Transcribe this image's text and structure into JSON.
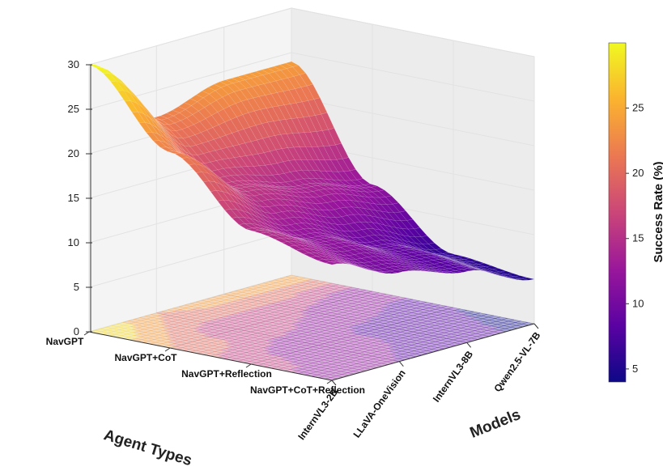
{
  "chart_data": {
    "type": "surface3d",
    "title": "",
    "xlabel": "Models",
    "ylabel": "Agent Types",
    "zlabel": "",
    "models": [
      "InternVL3-2B",
      "LLaVA-OneVision",
      "InternVL3-8B",
      "Qwen2.5-VL-7B"
    ],
    "agent_types": [
      "NavGPT",
      "NavGPT+CoT",
      "NavGPT+Reflection",
      "NavGPT+CoT+Reflection"
    ],
    "z_ticks": [
      0,
      5,
      10,
      15,
      20,
      25,
      30
    ],
    "zlim": [
      0,
      30
    ],
    "success_rate": [
      [
        30,
        22,
        24,
        24
      ],
      [
        22,
        16,
        14,
        12
      ],
      [
        15,
        12,
        9,
        6
      ],
      [
        13,
        10,
        8,
        5
      ]
    ],
    "colorbar": {
      "label": "Success Rate (%)",
      "ticks": [
        5,
        10,
        15,
        20,
        25
      ],
      "range": [
        4,
        30
      ],
      "colormap": "plasma",
      "stops": [
        "#0d0887",
        "#5b02a3",
        "#9a179b",
        "#cb4678",
        "#eb7852",
        "#fbb32f",
        "#f0f921"
      ]
    },
    "grid": true,
    "contour_projection": true
  }
}
